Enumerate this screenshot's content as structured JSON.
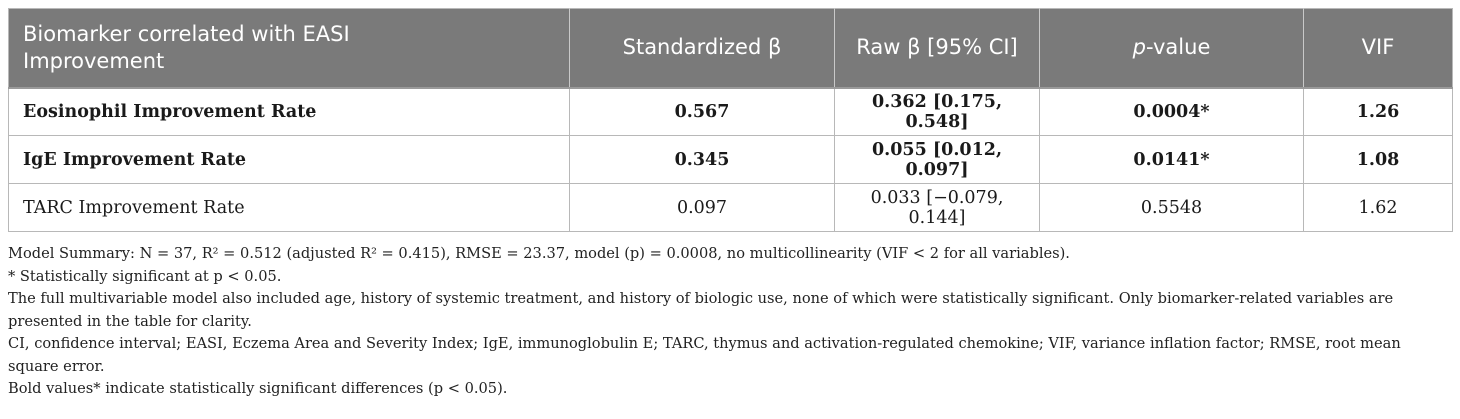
{
  "table": {
    "headers": {
      "col0": "Biomarker correlated with EASI Improvement",
      "col1": "Standardized β",
      "col2": "Raw β [95% CI]",
      "col3_italic": "p",
      "col3_rest": "-value",
      "col4": "VIF"
    },
    "rows": [
      {
        "label": "Eosinophil Improvement Rate",
        "std_beta": "0.567",
        "raw_beta": "0.362 [0.175, 0.548]",
        "p_value": "0.0004*",
        "vif": "1.26",
        "bold": true
      },
      {
        "label": "IgE Improvement Rate",
        "std_beta": "0.345",
        "raw_beta": "0.055 [0.012, 0.097]",
        "p_value": "0.0141*",
        "vif": "1.08",
        "bold": true
      },
      {
        "label": "TARC Improvement Rate",
        "std_beta": "0.097",
        "raw_beta": "0.033 [−0.079, 0.144]",
        "p_value": "0.5548",
        "vif": "1.62",
        "bold": false
      }
    ]
  },
  "notes": {
    "model_summary": "Model Summary: N = 37, R² = 0.512 (adjusted R² = 0.415), RMSE = 23.37, model (p) = 0.0008, no multicollinearity (VIF < 2 for all variables).",
    "significance": "* Statistically significant at p < 0.05.",
    "full_model": "The full multivariable model also included age, history of systemic treatment, and history of biologic use, none of which were statistically significant. Only biomarker-related variables are presented in the table for clarity.",
    "abbreviations": "CI, confidence interval; EASI, Eczema Area and Severity Index; IgE, immunoglobulin E; TARC, thymus and activation-regulated chemokine; VIF, variance inflation factor; RMSE, root mean square error.",
    "bold_note": "Bold values* indicate statistically significant differences (p < 0.05)."
  }
}
